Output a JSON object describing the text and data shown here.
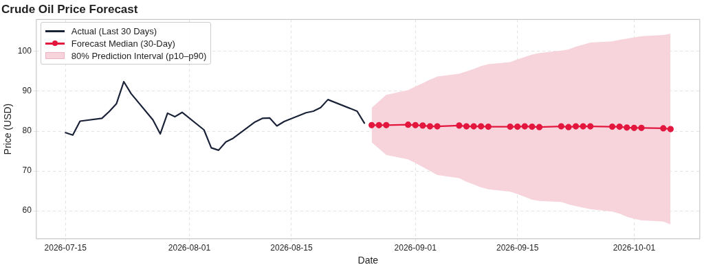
{
  "chart_data": {
    "type": "line",
    "title": "Crude Oil Price Forecast",
    "xlabel": "Date",
    "ylabel": "Price (USD)",
    "xlim": [
      "2026-07-11",
      "2026-10-10"
    ],
    "xticks": [
      "2026-07-15",
      "2026-08-01",
      "2026-08-15",
      "2026-09-01",
      "2026-09-15",
      "2026-10-01"
    ],
    "ylim": [
      53,
      108
    ],
    "yticks": [
      60,
      70,
      80,
      90,
      100
    ],
    "grid": true,
    "legend": "top left",
    "series": [
      {
        "name": "Actual (Last 30 Days)",
        "type": "line",
        "color": "#1a2238",
        "marker": "none",
        "x": [
          "2026-07-15",
          "2026-07-16",
          "2026-07-17",
          "2026-07-20",
          "2026-07-21",
          "2026-07-22",
          "2026-07-23",
          "2026-07-24",
          "2026-07-27",
          "2026-07-28",
          "2026-07-29",
          "2026-07-30",
          "2026-07-31",
          "2026-08-03",
          "2026-08-04",
          "2026-08-05",
          "2026-08-06",
          "2026-08-07",
          "2026-08-10",
          "2026-08-11",
          "2026-08-12",
          "2026-08-13",
          "2026-08-14",
          "2026-08-17",
          "2026-08-18",
          "2026-08-19",
          "2026-08-20",
          "2026-08-24",
          "2026-08-25"
        ],
        "values": [
          79.6,
          79.0,
          82.5,
          83.2,
          84.9,
          86.9,
          92.4,
          89.4,
          82.8,
          79.3,
          84.5,
          83.6,
          84.7,
          80.3,
          75.8,
          75.2,
          77.3,
          78.2,
          82.3,
          83.2,
          83.3,
          81.3,
          82.4,
          84.6,
          85.0,
          85.9,
          87.9,
          85.0,
          82.0
        ]
      },
      {
        "name": "Forecast Median (30-Day)",
        "type": "line",
        "color": "#e3173e",
        "marker": "circle",
        "x": [
          "2026-08-26",
          "2026-08-27",
          "2026-08-28",
          "2026-08-31",
          "2026-09-01",
          "2026-09-02",
          "2026-09-03",
          "2026-09-04",
          "2026-09-07",
          "2026-09-08",
          "2026-09-09",
          "2026-09-10",
          "2026-09-11",
          "2026-09-14",
          "2026-09-15",
          "2026-09-16",
          "2026-09-17",
          "2026-09-18",
          "2026-09-21",
          "2026-09-22",
          "2026-09-23",
          "2026-09-24",
          "2026-09-25",
          "2026-09-28",
          "2026-09-29",
          "2026-09-30",
          "2026-10-01",
          "2026-10-02",
          "2026-10-05",
          "2026-10-06"
        ],
        "values": [
          81.5,
          81.5,
          81.5,
          81.6,
          81.5,
          81.4,
          81.2,
          81.2,
          81.4,
          81.2,
          81.2,
          81.2,
          81.1,
          81.1,
          81.1,
          81.2,
          81.1,
          81.0,
          81.2,
          81.0,
          81.2,
          81.2,
          81.2,
          81.1,
          81.1,
          80.9,
          80.8,
          80.8,
          80.7,
          80.5
        ]
      },
      {
        "name": "80% Prediction Interval (p10–p90)",
        "type": "area",
        "color": "#f7d3dc",
        "x": [
          "2026-08-26",
          "2026-08-27",
          "2026-08-28",
          "2026-08-31",
          "2026-09-01",
          "2026-09-02",
          "2026-09-03",
          "2026-09-04",
          "2026-09-07",
          "2026-09-08",
          "2026-09-09",
          "2026-09-10",
          "2026-09-11",
          "2026-09-14",
          "2026-09-15",
          "2026-09-16",
          "2026-09-17",
          "2026-09-18",
          "2026-09-21",
          "2026-09-22",
          "2026-09-23",
          "2026-09-24",
          "2026-09-25",
          "2026-09-28",
          "2026-09-29",
          "2026-09-30",
          "2026-10-01",
          "2026-10-02",
          "2026-10-05",
          "2026-10-06"
        ],
        "values": [
          null,
          null,
          null,
          null,
          null,
          null,
          null,
          null,
          null,
          null,
          null,
          null,
          null,
          null,
          null,
          null,
          null,
          null,
          null,
          null,
          null,
          null,
          null,
          null,
          null,
          null,
          null,
          null,
          null,
          null
        ],
        "lower": [
          77.2,
          75.6,
          74.0,
          72.9,
          72.0,
          71.0,
          70.0,
          69.0,
          68.2,
          67.3,
          66.6,
          65.9,
          65.4,
          64.8,
          64.2,
          63.5,
          62.8,
          62.5,
          62.2,
          61.6,
          61.2,
          60.8,
          60.4,
          59.8,
          59.3,
          58.5,
          58.0,
          57.6,
          57.3,
          56.6
        ],
        "upper": [
          85.8,
          87.5,
          89.1,
          90.3,
          91.2,
          92.0,
          92.9,
          93.7,
          94.4,
          95.0,
          95.6,
          96.3,
          96.8,
          97.3,
          98.0,
          98.6,
          99.2,
          99.6,
          100.2,
          100.5,
          101.2,
          101.7,
          102.2,
          102.5,
          102.9,
          103.2,
          103.5,
          103.8,
          104.1,
          104.4
        ]
      }
    ]
  }
}
